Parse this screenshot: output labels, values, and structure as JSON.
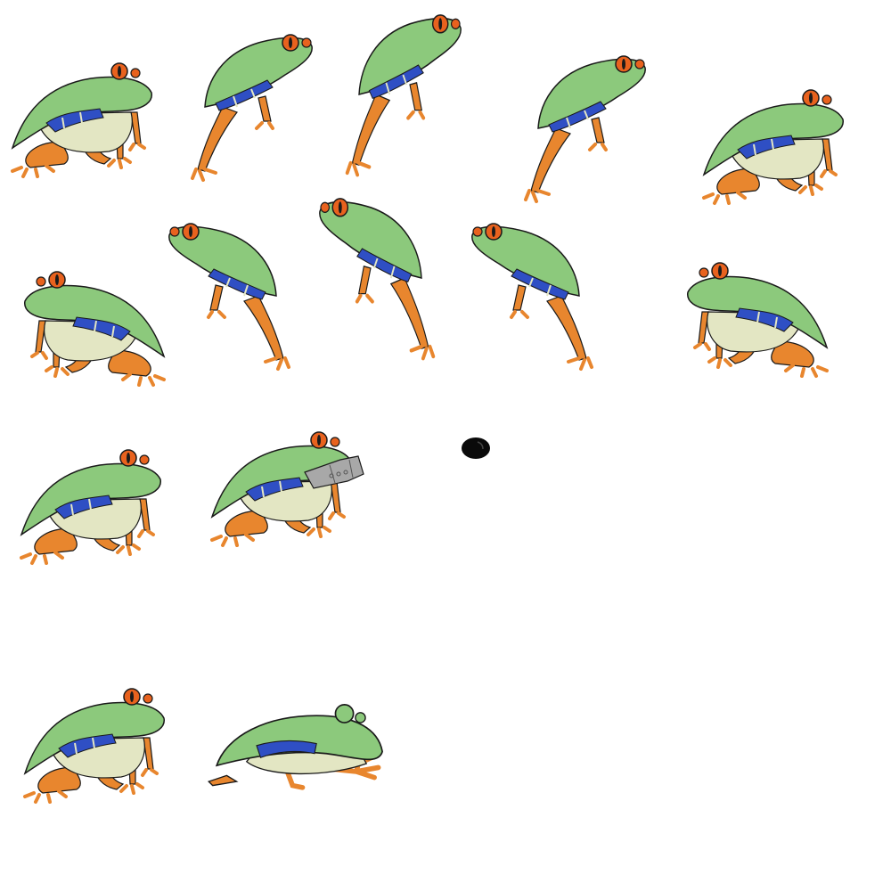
{
  "colors": {
    "background": "#ffffff",
    "skin_green": "#8cc97c",
    "belly": "#e3e6c3",
    "leg_orange": "#e8862e",
    "side_blue": "#2f4fc4",
    "eye_orange": "#e8621e",
    "outline": "#1a1a1a",
    "gun_gray": "#a8a8a8"
  },
  "sprites": [
    {
      "name": "frog-sit-1",
      "pose": "sit",
      "facing": "right"
    },
    {
      "name": "frog-leap-1",
      "pose": "leap",
      "facing": "right"
    },
    {
      "name": "frog-leap-2",
      "pose": "leap-high",
      "facing": "right"
    },
    {
      "name": "frog-leap-3",
      "pose": "leap",
      "facing": "right"
    },
    {
      "name": "frog-sit-2",
      "pose": "sit",
      "facing": "right"
    },
    {
      "name": "frog-sit-3",
      "pose": "sit",
      "facing": "left"
    },
    {
      "name": "frog-leap-4",
      "pose": "leap",
      "facing": "left"
    },
    {
      "name": "frog-leap-5",
      "pose": "leap-high",
      "facing": "left"
    },
    {
      "name": "frog-leap-6",
      "pose": "leap",
      "facing": "left"
    },
    {
      "name": "frog-sit-4",
      "pose": "sit",
      "facing": "left"
    },
    {
      "name": "frog-sit-5",
      "pose": "sit",
      "facing": "right"
    },
    {
      "name": "frog-shoot",
      "pose": "sit-gun",
      "facing": "right"
    },
    {
      "name": "bullet",
      "pose": "projectile",
      "facing": "right"
    },
    {
      "name": "frog-sit-6",
      "pose": "sit",
      "facing": "right"
    },
    {
      "name": "frog-crawl",
      "pose": "crawl",
      "facing": "right"
    }
  ]
}
